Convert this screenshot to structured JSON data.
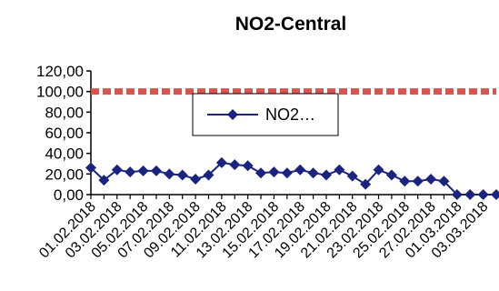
{
  "chart_data": {
    "type": "line",
    "title": "NO2-Central",
    "xlabel": "",
    "ylabel": "",
    "ylim": [
      0,
      120
    ],
    "yticks": [
      "0,00",
      "20,00",
      "40,00",
      "60,00",
      "80,00",
      "100,00",
      "120,00"
    ],
    "x": [
      "01.02.2018",
      "02.02.2018",
      "03.02.2018",
      "04.02.2018",
      "05.02.2018",
      "06.02.2018",
      "07.02.2018",
      "08.02.2018",
      "09.02.2018",
      "10.02.2018",
      "11.02.2018",
      "12.02.2018",
      "13.02.2018",
      "14.02.2018",
      "15.02.2018",
      "16.02.2018",
      "17.02.2018",
      "18.02.2018",
      "19.02.2018",
      "20.02.2018",
      "21.02.2018",
      "22.02.2018",
      "23.02.2018",
      "24.02.2018",
      "25.02.2018",
      "26.02.2018",
      "27.02.2018",
      "28.02.2018",
      "01.03.2018",
      "02.03.2018",
      "03.03.2018",
      "04.03.2018"
    ],
    "xticks_shown": [
      "01.02.2018",
      "03.02.2018",
      "05.02.2018",
      "07.02.2018",
      "09.02.2018",
      "11.02.2018",
      "13.02.2018",
      "15.02.2018",
      "17.02.2018",
      "19.02.2018",
      "21.02.2018",
      "23.02.2018",
      "25.02.2018",
      "27.02.2018",
      "01.03.2018",
      "03.03.2018"
    ],
    "series": [
      {
        "name": "NO2…",
        "color": "#1a237e",
        "marker": "diamond",
        "values": [
          26,
          14,
          24,
          22,
          23,
          23,
          20,
          19,
          15,
          19,
          31,
          29,
          28,
          21,
          22,
          21,
          24,
          21,
          19,
          24,
          18,
          10,
          24,
          19,
          13,
          13,
          15,
          13,
          0,
          0,
          0,
          0
        ]
      }
    ],
    "limit_line": {
      "value": 100,
      "color": "#d9534f",
      "style": "dashed"
    },
    "legend": {
      "position": "inside-top-center",
      "label": "NO2…"
    },
    "grid": false
  }
}
